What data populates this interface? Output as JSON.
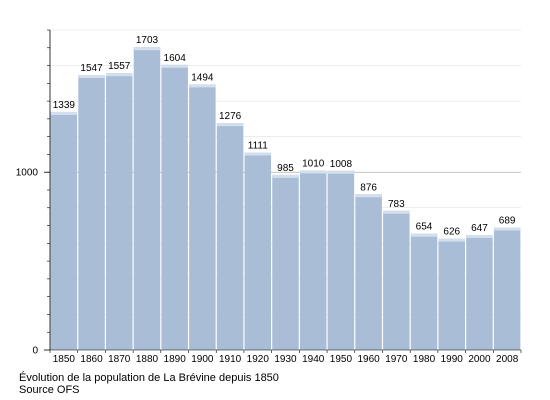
{
  "chart_data": {
    "type": "bar",
    "categories": [
      "1850",
      "1860",
      "1870",
      "1880",
      "1890",
      "1900",
      "1910",
      "1920",
      "1930",
      "1940",
      "1950",
      "1960",
      "1970",
      "1980",
      "1990",
      "2000",
      "2008"
    ],
    "values": [
      1339,
      1547,
      1557,
      1703,
      1604,
      1494,
      1276,
      1111,
      985,
      1010,
      1008,
      876,
      783,
      654,
      626,
      647,
      689
    ],
    "y_ticks": [
      0,
      1000
    ],
    "ylim": [
      0,
      1800
    ],
    "grid": true,
    "bar_color": "#a9bdd6",
    "bar_highlight_color": "#d3dfec",
    "grid_color": "#aaaaaa",
    "axis_color": "#000000"
  },
  "caption": {
    "line1": "Évolution de la population de La Brévine depuis 1850",
    "line2": "Source OFS"
  }
}
